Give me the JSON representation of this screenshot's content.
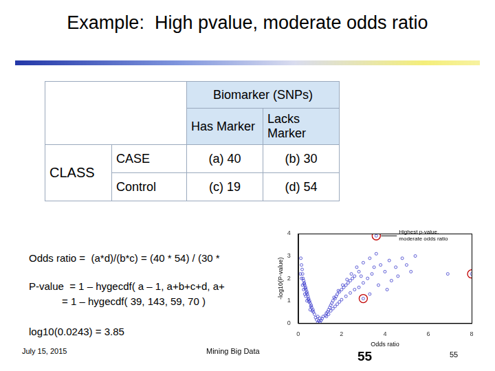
{
  "title": "Example:  High pvalue, moderate odds ratio",
  "table": {
    "header": "Biomarker (SNPs)",
    "columns": [
      "Has Marker",
      "Lacks Marker"
    ],
    "group_label": "CLASS",
    "rows": [
      {
        "label": "CASE",
        "cells": [
          "(a) 40",
          "(b) 30"
        ]
      },
      {
        "label": "Control",
        "cells": [
          "(c) 19",
          "(d) 54"
        ]
      }
    ]
  },
  "text_lines": [
    "Odds ratio =  (a*d)/(b*c) = (40 * 54) / (30 *",
    "P-value  = 1 – hygecdf( a – 1, a+b+c+d, a+",
    "= 1 – hygecdf( 39, 143, 59, 70 )",
    "log10(0.0243) = 3.85"
  ],
  "footer": {
    "date": "July 15, 2015",
    "center": "Mining Big Data",
    "slide_number": "55",
    "page": "55"
  },
  "chart_data": {
    "type": "scatter",
    "xlabel": "Odds ratio",
    "ylabel": "-log10(P-value)",
    "xlim": [
      0,
      8
    ],
    "ylim": [
      0,
      4
    ],
    "xticks": [
      0,
      2,
      4,
      6,
      8
    ],
    "yticks": [
      0,
      1,
      2,
      3,
      4
    ],
    "grid": false,
    "annotations": [
      {
        "text": [
          "Highest p-value,",
          "moderate odds ratio"
        ],
        "x": 3.6,
        "y": 3.9
      }
    ],
    "series": [
      {
        "color": "#3a3acc",
        "marker": "circle_open",
        "x": [
          0.9,
          1.0,
          0.95,
          1.05,
          0.85,
          1.1,
          0.8,
          1.15,
          0.9,
          1.0,
          0.75,
          0.7,
          0.68,
          0.62,
          0.6,
          0.55,
          0.52,
          0.48,
          0.45,
          0.42,
          0.4,
          0.36,
          0.34,
          0.3,
          0.28,
          0.25,
          0.22,
          0.2,
          0.18,
          0.15,
          0.12,
          0.65,
          0.58,
          0.5,
          0.46,
          0.38,
          0.32,
          0.27,
          0.3,
          0.4,
          0.55,
          0.2,
          0.15,
          0.1,
          0.25,
          0.35,
          1.25,
          1.3,
          1.35,
          1.4,
          1.45,
          1.5,
          1.55,
          1.6,
          1.7,
          1.75,
          1.8,
          1.9,
          2.0,
          2.1,
          2.2,
          2.3,
          2.4,
          2.5,
          2.6,
          2.8,
          1.3,
          1.4,
          1.5,
          1.6,
          1.7,
          1.8,
          1.9,
          2.0,
          2.2,
          2.4,
          2.6,
          2.8,
          3.0,
          3.2,
          3.4,
          1.65,
          1.85,
          2.05,
          2.25,
          2.45,
          2.7,
          3.0,
          3.3,
          3.6,
          2.9,
          3.5,
          3.8,
          4.0,
          4.2,
          4.5,
          4.8,
          5.0,
          5.4,
          4.3,
          4.6,
          5.2,
          3.7,
          4.1,
          3.3,
          6.9,
          3.6,
          8.0,
          3.0
        ],
        "y": [
          0.02,
          0.05,
          0.1,
          0.12,
          0.15,
          0.2,
          0.25,
          0.3,
          0.3,
          0.22,
          0.4,
          0.5,
          0.6,
          0.7,
          0.8,
          0.9,
          1.0,
          1.1,
          1.2,
          1.3,
          1.4,
          1.5,
          1.6,
          1.7,
          1.8,
          1.9,
          2.0,
          2.2,
          2.4,
          2.6,
          2.9,
          0.55,
          0.75,
          0.95,
          1.05,
          1.35,
          1.55,
          1.75,
          1.3,
          1.0,
          0.6,
          1.7,
          2.0,
          2.2,
          1.5,
          1.2,
          0.35,
          0.45,
          0.5,
          0.6,
          0.7,
          0.8,
          0.9,
          1.0,
          1.1,
          1.2,
          1.3,
          1.4,
          1.5,
          1.6,
          1.7,
          1.8,
          1.9,
          2.0,
          2.1,
          2.3,
          0.3,
          0.4,
          0.55,
          0.65,
          0.75,
          0.85,
          0.95,
          1.05,
          1.2,
          1.35,
          1.5,
          1.6,
          1.8,
          2.0,
          2.2,
          1.15,
          1.45,
          1.7,
          1.95,
          2.2,
          2.5,
          2.7,
          2.9,
          3.1,
          2.1,
          2.5,
          2.6,
          2.3,
          2.8,
          2.5,
          2.9,
          2.6,
          3.0,
          1.9,
          2.1,
          2.3,
          1.7,
          1.5,
          1.3,
          2.2,
          3.9,
          2.2,
          1.1
        ]
      },
      {
        "color": "#c00000",
        "marker": "ring",
        "x": [
          3.6,
          8.0,
          3.0
        ],
        "y": [
          3.9,
          2.2,
          1.1
        ]
      }
    ]
  }
}
